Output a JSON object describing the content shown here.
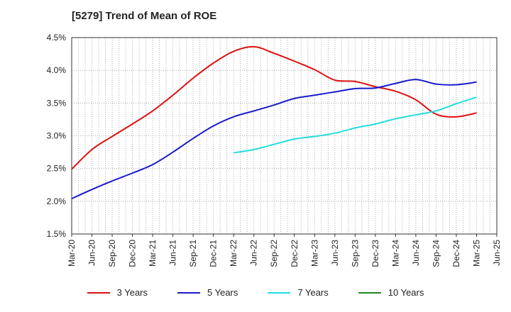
{
  "chart_data": {
    "type": "line",
    "title": "[5279]  Trend of Mean of ROE",
    "xlabel": "",
    "ylabel": "",
    "ylim": [
      1.5,
      4.5
    ],
    "yticks": [
      1.5,
      2.0,
      2.5,
      3.0,
      3.5,
      4.0,
      4.5
    ],
    "ytick_labels": [
      "1.5%",
      "2.0%",
      "2.5%",
      "3.0%",
      "3.5%",
      "4.0%",
      "4.5%"
    ],
    "categories": [
      "Mar-20",
      "Jun-20",
      "Sep-20",
      "Dec-20",
      "Mar-21",
      "Jun-21",
      "Sep-21",
      "Dec-21",
      "Mar-22",
      "Jun-22",
      "Sep-22",
      "Dec-22",
      "Mar-23",
      "Jun-23",
      "Sep-23",
      "Dec-23",
      "Mar-24",
      "Jun-24",
      "Sep-24",
      "Dec-24",
      "Mar-25",
      "Jun-25"
    ],
    "grid": true,
    "legend_position": "bottom",
    "series": [
      {
        "name": "3 Years",
        "color": "#dd1111",
        "values": [
          2.49,
          2.79,
          2.99,
          3.18,
          3.38,
          3.62,
          3.88,
          4.11,
          4.29,
          4.36,
          4.26,
          4.14,
          4.01,
          3.85,
          3.83,
          3.75,
          3.68,
          3.55,
          3.33,
          3.29,
          3.35,
          null
        ]
      },
      {
        "name": "5 Years",
        "color": "#1a1acc",
        "values": [
          2.04,
          2.18,
          2.31,
          2.43,
          2.56,
          2.75,
          2.96,
          3.15,
          3.29,
          3.38,
          3.47,
          3.57,
          3.62,
          3.67,
          3.72,
          3.73,
          3.8,
          3.86,
          3.79,
          3.78,
          3.82,
          null
        ]
      },
      {
        "name": "7 Years",
        "color": "#22dddd",
        "values": [
          null,
          null,
          null,
          null,
          null,
          null,
          null,
          null,
          2.74,
          2.79,
          2.87,
          2.95,
          2.99,
          3.04,
          3.12,
          3.18,
          3.26,
          3.32,
          3.38,
          3.49,
          3.59,
          null
        ]
      },
      {
        "name": "10 Years",
        "color": "#228822",
        "values": [
          null,
          null,
          null,
          null,
          null,
          null,
          null,
          null,
          null,
          null,
          null,
          null,
          null,
          null,
          null,
          null,
          null,
          null,
          null,
          null,
          null,
          null
        ]
      }
    ]
  }
}
